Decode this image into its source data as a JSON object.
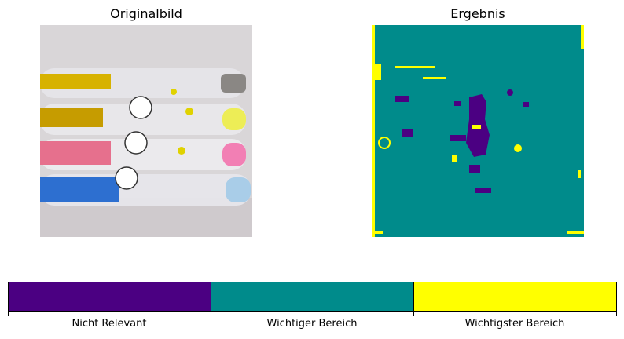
{
  "panels": [
    {
      "title": "Originalbild"
    },
    {
      "title": "Ergebnis"
    }
  ],
  "colorbar": {
    "labels": [
      "Nicht Relevant",
      "Wichtiger Bereich",
      "Wichtigster Bereich"
    ],
    "colors": [
      "#4b0082",
      "#008b8b",
      "#ffff00"
    ]
  }
}
